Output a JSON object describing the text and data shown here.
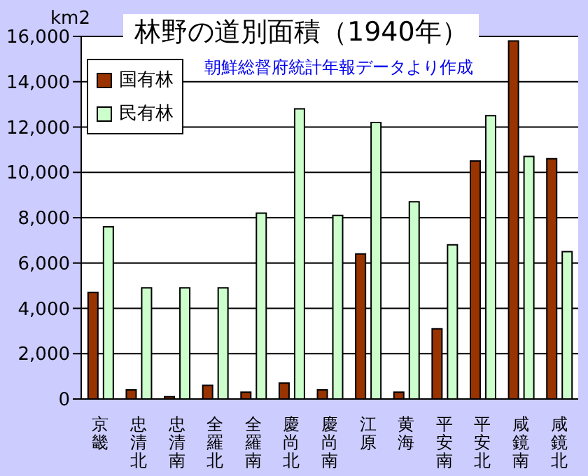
{
  "chart_data": {
    "type": "bar",
    "title": "林野の道別面積（1940年）",
    "subtitle": "朝鮮総督府統計年報データより作成",
    "ylabel": "km2",
    "categories": [
      "京畿",
      "忠清北",
      "忠清南",
      "全羅北",
      "全羅南",
      "慶尚北",
      "慶尚南",
      "江原",
      "黄海",
      "平安南",
      "平安北",
      "咸鏡南",
      "咸鏡北"
    ],
    "series": [
      {
        "name": "国有林",
        "color": "#993300",
        "values": [
          4700,
          400,
          100,
          600,
          300,
          700,
          400,
          6400,
          300,
          3100,
          10500,
          15800,
          10600
        ]
      },
      {
        "name": "民有林",
        "color": "#ccffcc",
        "values": [
          7600,
          4900,
          4900,
          4900,
          8200,
          12800,
          8100,
          12200,
          8700,
          6800,
          12500,
          10700,
          6500
        ]
      }
    ],
    "ylim": [
      0,
      16000
    ],
    "yticks": [
      {
        "value": 0,
        "label": "0"
      },
      {
        "value": 2000,
        "label": "2,000"
      },
      {
        "value": 4000,
        "label": "4,000"
      },
      {
        "value": 6000,
        "label": "6,000"
      },
      {
        "value": 8000,
        "label": "8,000"
      },
      {
        "value": 10000,
        "label": "10,000"
      },
      {
        "value": 12000,
        "label": "12,000"
      },
      {
        "value": 14000,
        "label": "14,000"
      },
      {
        "value": 16000,
        "label": "16,000"
      }
    ],
    "grid": "y",
    "legend": "top left"
  }
}
